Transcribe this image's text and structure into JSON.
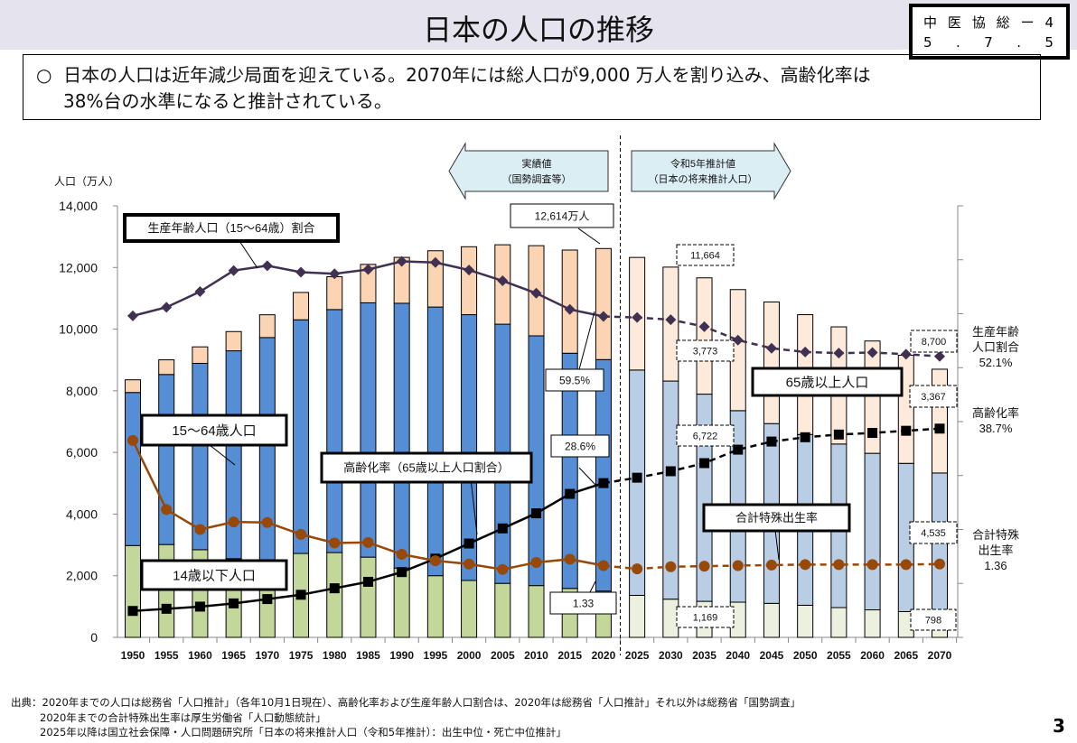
{
  "header": {
    "title": "日本の人口の推移",
    "doc_id_line1": [
      "中",
      "医",
      "協",
      "総",
      "ー",
      "4"
    ],
    "doc_id_line2": [
      "5",
      ".",
      "7",
      ".",
      "5"
    ]
  },
  "summary": {
    "bullet": "○",
    "line1": "日本の人口は近年減少局面を迎えている。2070年には総人口が9,000 万人を割り込み、高齢化率は",
    "line2": "38%台の水準になると推計されている。"
  },
  "chart_data": {
    "type": "bar",
    "ylabel": "人口（万人）",
    "ylim": [
      0,
      14000
    ],
    "yticks": [
      "0",
      "2,000",
      "4,000",
      "6,000",
      "8,000",
      "10,000",
      "12,000",
      "14,000"
    ],
    "y2lim": [
      0,
      80
    ],
    "categories": [
      "1950",
      "1955",
      "1960",
      "1965",
      "1970",
      "1975",
      "1980",
      "1985",
      "1990",
      "1995",
      "2000",
      "2005",
      "2010",
      "2015",
      "2020",
      "2025",
      "2030",
      "2035",
      "2040",
      "2045",
      "2050",
      "2055",
      "2060",
      "2065",
      "2070"
    ],
    "projection_start": "2025",
    "series": [
      {
        "name": "14歳以下人口",
        "stack": true,
        "values": [
          2979,
          3012,
          2843,
          2553,
          2515,
          2722,
          2751,
          2603,
          2249,
          2001,
          1847,
          1752,
          1680,
          1589,
          1503,
          1363,
          1240,
          1169,
          1142,
          1103,
          1041,
          966,
          893,
          836,
          798
        ]
      },
      {
        "name": "15〜64歳人口",
        "stack": true,
        "values": [
          4966,
          5517,
          6047,
          6744,
          7212,
          7581,
          7884,
          8251,
          8590,
          8716,
          8622,
          8409,
          8103,
          7629,
          7509,
          7310,
          7076,
          6722,
          6213,
          5832,
          5540,
          5307,
          5078,
          4809,
          4535
        ]
      },
      {
        "name": "65歳以上人口",
        "stack": true,
        "values": [
          411,
          475,
          535,
          624,
          739,
          887,
          1065,
          1247,
          1489,
          1826,
          2204,
          2576,
          2925,
          3347,
          3603,
          3653,
          3696,
          3773,
          3928,
          3945,
          3888,
          3801,
          3644,
          3508,
          3367
        ]
      },
      {
        "name": "生産年齢人口（15〜64歳）割合",
        "type": "line",
        "axis": "right",
        "unit": "%",
        "values": [
          59.6,
          61.2,
          64.1,
          68.0,
          68.9,
          67.7,
          67.4,
          68.2,
          69.7,
          69.5,
          68.1,
          66.1,
          63.8,
          60.8,
          59.5,
          59.3,
          58.9,
          57.6,
          55.1,
          53.6,
          52.9,
          52.7,
          52.8,
          52.5,
          52.1
        ]
      },
      {
        "name": "高齢化率（65歳以上人口割合）",
        "type": "line",
        "axis": "right",
        "unit": "%",
        "values": [
          4.9,
          5.3,
          5.7,
          6.3,
          7.1,
          7.9,
          9.1,
          10.3,
          12.1,
          14.6,
          17.4,
          20.2,
          23.0,
          26.6,
          28.6,
          29.6,
          30.8,
          32.3,
          34.8,
          36.3,
          37.1,
          37.6,
          37.9,
          38.3,
          38.7
        ]
      },
      {
        "name": "合計特殊出生率",
        "type": "line",
        "axis": "right-tfr",
        "values": [
          3.65,
          2.37,
          2.0,
          2.14,
          2.13,
          1.91,
          1.75,
          1.76,
          1.54,
          1.42,
          1.36,
          1.26,
          1.39,
          1.45,
          1.33,
          1.27,
          1.31,
          1.32,
          1.33,
          1.34,
          1.35,
          1.35,
          1.35,
          1.35,
          1.36
        ]
      }
    ],
    "colors": {
      "young": "#c4d79b",
      "working": "#558ed5",
      "elderly": "#fbd4b4",
      "young_proj": "#ebf1de",
      "working_proj": "#b9cde5",
      "elderly_proj": "#fdeada",
      "working_ratio": "#403152",
      "aging_rate": "#000000",
      "tfr": "#984807",
      "arrow": "#dbeef4"
    },
    "arrows": {
      "actual_line1": "実績値",
      "actual_line2": "（国勢調査等）",
      "projection_line1": "令和5年推計値",
      "projection_line2": "（日本の将来推計人口）"
    },
    "legend_boxes": {
      "working_ratio": "生産年齢人口（15〜64歳）割合",
      "working_pop": "15〜64歳人口",
      "aging_rate": "高齢化率（65歳以上人口割合）",
      "young_pop": "14歳以下人口",
      "elderly_pop": "65歳以上人口",
      "tfr": "合計特殊出生率"
    },
    "annotations": {
      "total_2020": "12,614万人",
      "working_ratio_2020": "59.5%",
      "aging_2020": "28.6%",
      "tfr_2020": "1.33",
      "total_2035": "11,664",
      "elderly_2035": "3,773",
      "working_2035": "6,722",
      "young_2035": "1,169",
      "total_2070": "8,700",
      "elderly_2070": "3,367",
      "working_2070": "4,535",
      "young_2070": "798"
    },
    "right_labels": {
      "working_ratio": [
        "生産年齢",
        "人口割合",
        "52.1%"
      ],
      "aging": [
        "高齢化率",
        "38.7%"
      ],
      "tfr": [
        "合計特殊",
        "出生率",
        "1.36"
      ]
    }
  },
  "source": {
    "line1": "出典：2020年までの人口は総務省「人口推計」（各年10月1日現在）、高齢化率および生産年齢人口割合は、2020年は総務省「人口推計」それ以外は総務省「国勢調査」",
    "line2": "2020年までの合計特殊出生率は厚生労働省「人口動態統計」",
    "line3": "2025年以降は国立社会保障・人口問題研究所「日本の将来推計人口（令和5年推計）：出生中位・死亡中位推計」"
  },
  "page_number": "3"
}
